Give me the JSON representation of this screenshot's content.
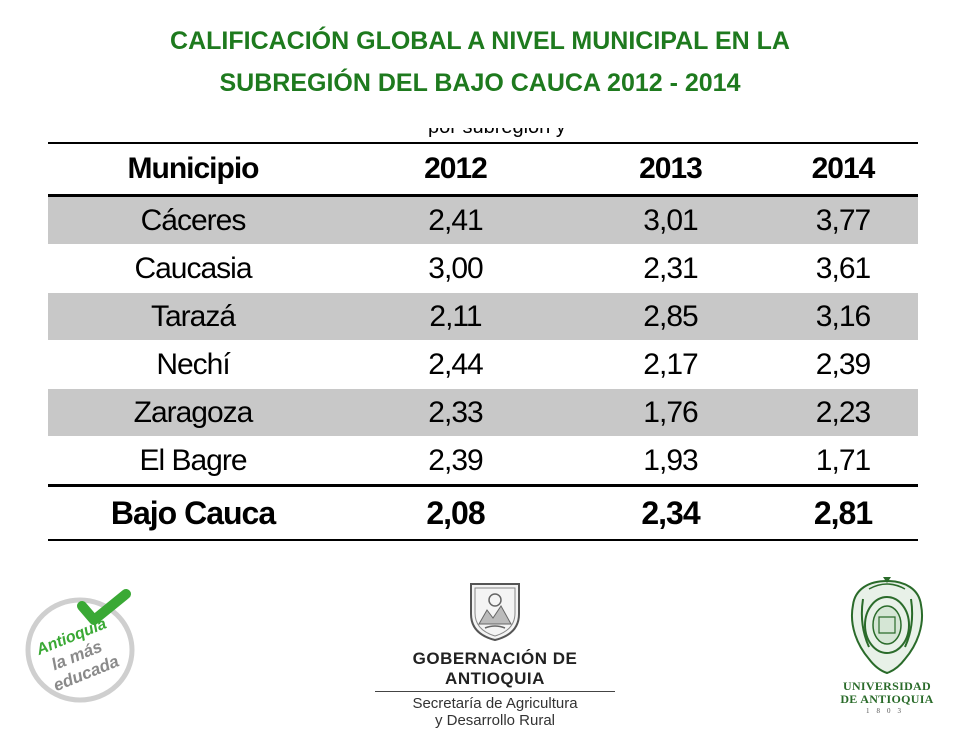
{
  "header": {
    "title_line1": "CALIFICACIÓN GLOBAL A NIVEL MUNICIPAL EN LA",
    "title_line2": "SUBREGIÓN DEL BAJO CAUCA 2012 - 2014"
  },
  "table": {
    "clipped_caption": "por subregión y",
    "columns": [
      "Municipio",
      "2012",
      "2013",
      "2014"
    ],
    "rows": [
      {
        "municipio": "Cáceres",
        "v2012": "2,41",
        "v2013": "3,01",
        "v2014": "3,77"
      },
      {
        "municipio": "Caucasia",
        "v2012": "3,00",
        "v2013": "2,31",
        "v2014": "3,61"
      },
      {
        "municipio": "Tarazá",
        "v2012": "2,11",
        "v2013": "2,85",
        "v2014": "3,16"
      },
      {
        "municipio": "Nechí",
        "v2012": "2,44",
        "v2013": "2,17",
        "v2014": "2,39"
      },
      {
        "municipio": "Zaragoza",
        "v2012": "2,33",
        "v2013": "1,76",
        "v2014": "2,23"
      },
      {
        "municipio": "El Bagre",
        "v2012": "2,39",
        "v2013": "1,93",
        "v2014": "1,71"
      }
    ],
    "total": {
      "municipio": "Bajo Cauca",
      "v2012": "2,08",
      "v2013": "2,34",
      "v2014": "2,81"
    }
  },
  "logos": {
    "left": {
      "line1": "Antioquia",
      "line2": "la más",
      "line3": "educada",
      "color": "#3aa935"
    },
    "center": {
      "name": "GOBERNACIÓN DE ANTIOQUIA",
      "sub1": "Secretaría de Agricultura",
      "sub2": "y Desarrollo Rural"
    },
    "right": {
      "line1": "UNIVERSIDAD",
      "line2": "DE ANTIOQUIA",
      "year": "1803",
      "color": "#2a6b2a"
    }
  },
  "colors": {
    "title": "#1e7a1e",
    "row_shade": "#c8c8c8"
  }
}
